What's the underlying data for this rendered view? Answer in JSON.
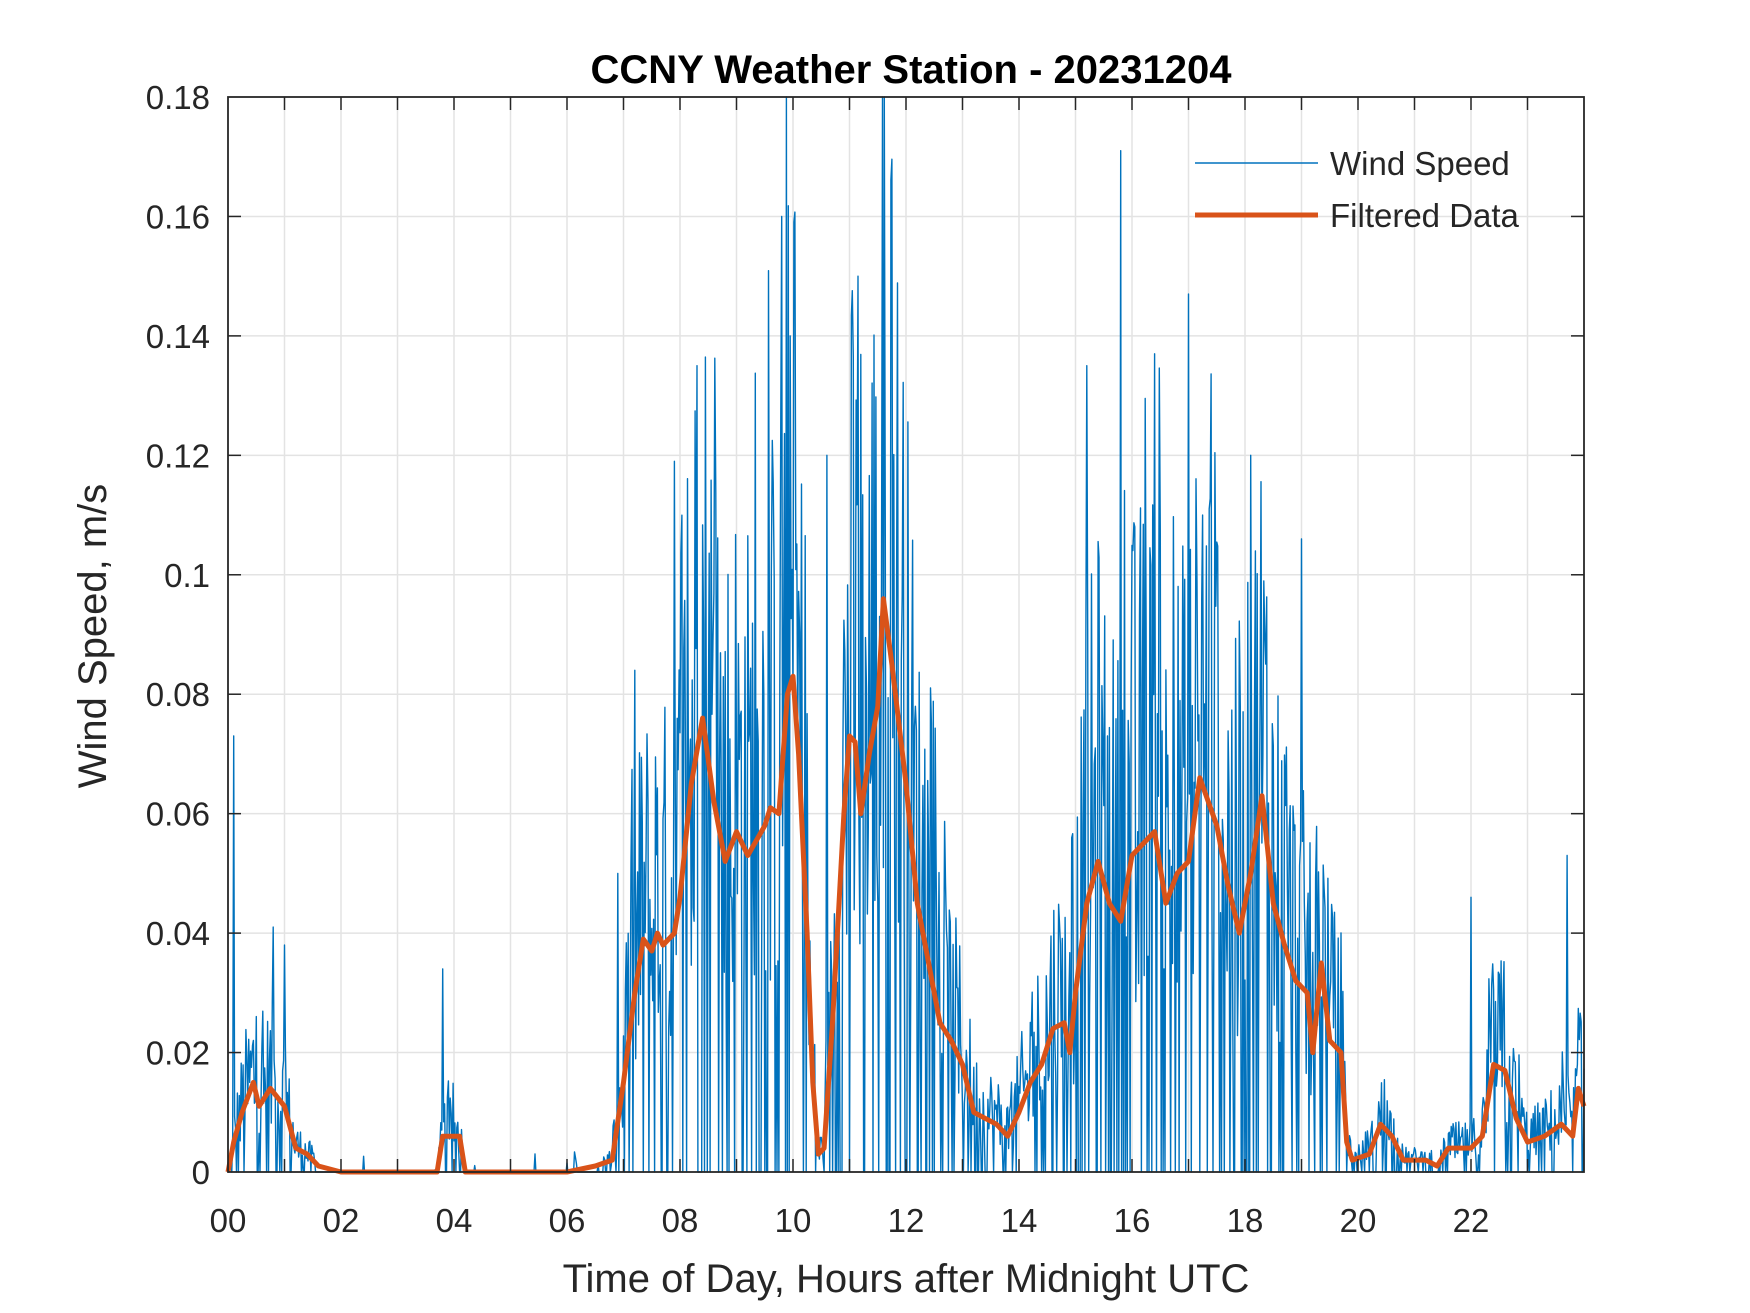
{
  "chart_data": {
    "type": "line",
    "title": "CCNY Weather Station - 20231204",
    "xlabel": "Time of Day, Hours after Midnight UTC",
    "ylabel": "Wind Speed, m/s",
    "xlim": [
      0,
      24
    ],
    "ylim": [
      0,
      0.18
    ],
    "grid": true,
    "legend_placement": "top-right",
    "x_ticks": [
      0,
      2,
      4,
      6,
      8,
      10,
      12,
      14,
      16,
      18,
      20,
      22
    ],
    "x_tick_labels": [
      "00",
      "02",
      "04",
      "06",
      "08",
      "10",
      "12",
      "14",
      "16",
      "18",
      "20",
      "22"
    ],
    "y_ticks": [
      0,
      0.02,
      0.04,
      0.06,
      0.08,
      0.1,
      0.12,
      0.14,
      0.16,
      0.18
    ],
    "y_tick_labels": [
      "0",
      "0.02",
      "0.04",
      "0.06",
      "0.08",
      "0.1",
      "0.12",
      "0.14",
      "0.16",
      "0.18"
    ],
    "series": [
      {
        "name": "Wind Speed",
        "color": "#0072BD",
        "note": "raw noisy signal; notable peaks listed",
        "peaks": [
          [
            0.1,
            0.073
          ],
          [
            0.8,
            0.041
          ],
          [
            1.0,
            0.038
          ],
          [
            3.8,
            0.034
          ],
          [
            6.9,
            0.05
          ],
          [
            7.2,
            0.084
          ],
          [
            7.9,
            0.119
          ],
          [
            8.3,
            0.135
          ],
          [
            9.8,
            0.16
          ],
          [
            9.95,
            0.14
          ],
          [
            10.6,
            0.12
          ],
          [
            11.15,
            0.15
          ],
          [
            15.2,
            0.135
          ],
          [
            15.8,
            0.171
          ],
          [
            16.4,
            0.137
          ],
          [
            17.0,
            0.147
          ],
          [
            18.1,
            0.12
          ],
          [
            19.0,
            0.106
          ],
          [
            22.0,
            0.046
          ],
          [
            23.7,
            0.053
          ]
        ]
      },
      {
        "name": "Filtered Data",
        "color": "#D95319",
        "x": [
          0,
          0.1,
          0.25,
          0.45,
          0.55,
          0.75,
          1.0,
          1.2,
          1.4,
          1.6,
          2.0,
          3.7,
          3.8,
          4.1,
          4.2,
          6.0,
          6.5,
          6.8,
          7.0,
          7.2,
          7.35,
          7.5,
          7.6,
          7.7,
          7.9,
          8.0,
          8.2,
          8.4,
          8.6,
          8.8,
          9.0,
          9.2,
          9.5,
          9.6,
          9.75,
          9.9,
          10.0,
          10.1,
          10.25,
          10.35,
          10.45,
          10.55,
          10.7,
          10.9,
          11.0,
          11.1,
          11.2,
          11.35,
          11.5,
          11.6,
          11.75,
          12.0,
          12.2,
          12.4,
          12.6,
          12.8,
          13.0,
          13.2,
          13.4,
          13.6,
          13.8,
          14.0,
          14.2,
          14.4,
          14.6,
          14.8,
          14.9,
          15.0,
          15.2,
          15.4,
          15.6,
          15.8,
          16.0,
          16.2,
          16.4,
          16.6,
          16.8,
          17.0,
          17.2,
          17.5,
          17.7,
          17.9,
          18.1,
          18.3,
          18.5,
          18.7,
          18.9,
          19.1,
          19.2,
          19.35,
          19.5,
          19.7,
          19.8,
          19.9,
          20.2,
          20.4,
          20.6,
          20.8,
          21.2,
          21.4,
          21.6,
          22.0,
          22.2,
          22.4,
          22.6,
          22.8,
          23.0,
          23.3,
          23.6,
          23.8,
          23.9,
          24.0
        ],
        "y": [
          0,
          0.005,
          0.01,
          0.015,
          0.011,
          0.014,
          0.011,
          0.004,
          0.003,
          0.001,
          0.0,
          0.0,
          0.006,
          0.006,
          0.0,
          0.0,
          0.001,
          0.002,
          0.015,
          0.03,
          0.039,
          0.037,
          0.04,
          0.038,
          0.04,
          0.046,
          0.065,
          0.076,
          0.062,
          0.052,
          0.057,
          0.053,
          0.058,
          0.061,
          0.06,
          0.08,
          0.083,
          0.07,
          0.04,
          0.015,
          0.003,
          0.004,
          0.025,
          0.06,
          0.073,
          0.072,
          0.06,
          0.07,
          0.078,
          0.096,
          0.085,
          0.065,
          0.045,
          0.035,
          0.025,
          0.022,
          0.018,
          0.01,
          0.009,
          0.008,
          0.006,
          0.01,
          0.015,
          0.018,
          0.024,
          0.025,
          0.02,
          0.03,
          0.045,
          0.052,
          0.045,
          0.042,
          0.053,
          0.055,
          0.057,
          0.045,
          0.05,
          0.052,
          0.066,
          0.058,
          0.048,
          0.04,
          0.05,
          0.063,
          0.045,
          0.038,
          0.032,
          0.03,
          0.02,
          0.035,
          0.022,
          0.02,
          0.005,
          0.002,
          0.003,
          0.008,
          0.006,
          0.002,
          0.002,
          0.001,
          0.004,
          0.004,
          0.006,
          0.018,
          0.017,
          0.009,
          0.005,
          0.006,
          0.008,
          0.006,
          0.014,
          0.011
        ]
      }
    ]
  }
}
